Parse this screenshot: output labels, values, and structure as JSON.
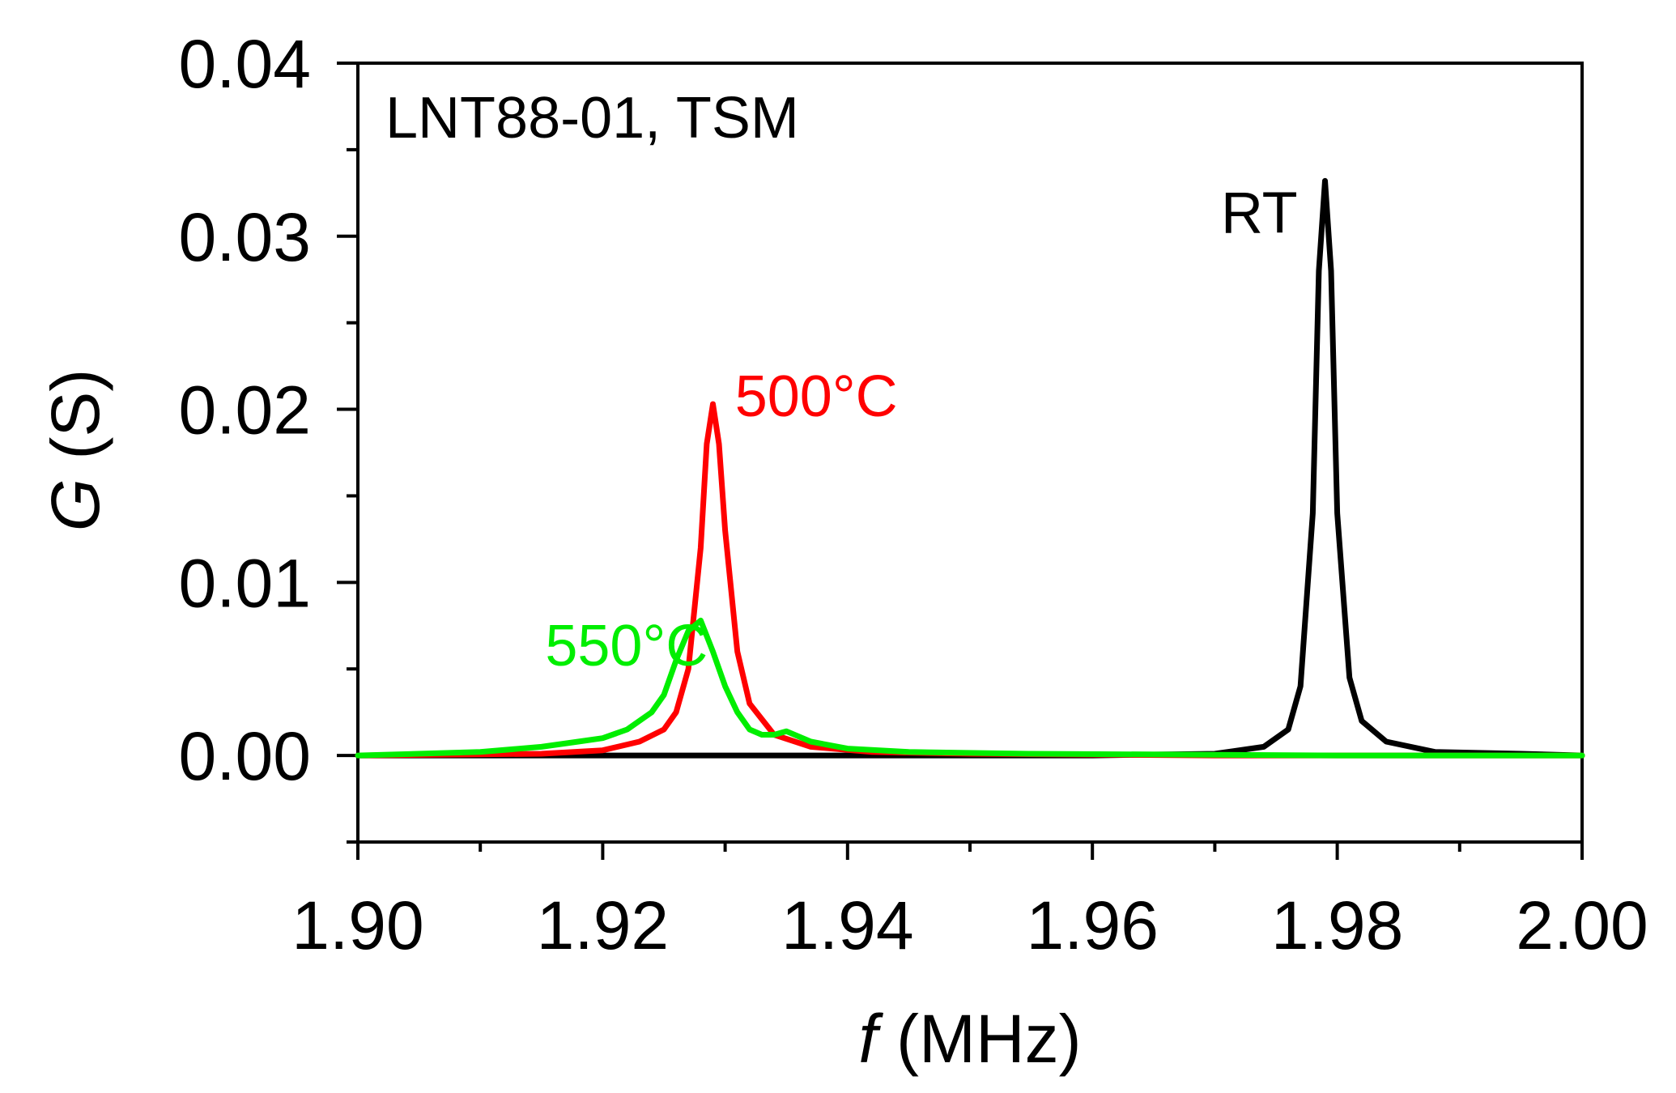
{
  "chart_data": {
    "type": "line",
    "title": "",
    "xlabel_var": "f",
    "xlabel_unit": " (MHz)",
    "ylabel_var": "G",
    "ylabel_unit": " (S)",
    "xlim": [
      1.9,
      2.0
    ],
    "ylim": [
      -0.005,
      0.04
    ],
    "x_ticks": [
      1.9,
      1.92,
      1.94,
      1.96,
      1.98,
      2.0
    ],
    "x_tick_labels": [
      "1.90",
      "1.92",
      "1.94",
      "1.96",
      "1.98",
      "2.00"
    ],
    "y_ticks": [
      0.0,
      0.01,
      0.02,
      0.03,
      0.04
    ],
    "y_tick_labels": [
      "0.00",
      "0.01",
      "0.02",
      "0.03",
      "0.04"
    ],
    "grid": false,
    "panel_label": "LNT88-01, TSM",
    "series": [
      {
        "name": "RT",
        "color": "#000000",
        "x": [
          1.9,
          1.96,
          1.97,
          1.974,
          1.976,
          1.977,
          1.978,
          1.9785,
          1.979,
          1.9795,
          1.98,
          1.981,
          1.982,
          1.984,
          1.988,
          1.995,
          2.0
        ],
        "y": [
          0.0,
          0.0,
          0.0001,
          0.0005,
          0.0015,
          0.004,
          0.014,
          0.028,
          0.0332,
          0.028,
          0.014,
          0.0045,
          0.002,
          0.0008,
          0.0002,
          0.0001,
          0.0
        ]
      },
      {
        "name": "500°C",
        "color": "#ff0000",
        "x": [
          1.9,
          1.915,
          1.92,
          1.923,
          1.925,
          1.926,
          1.927,
          1.928,
          1.9285,
          1.929,
          1.9295,
          1.93,
          1.931,
          1.932,
          1.934,
          1.937,
          1.942,
          1.95,
          1.97,
          2.0
        ],
        "y": [
          0.0,
          0.0001,
          0.0003,
          0.0008,
          0.0015,
          0.0025,
          0.005,
          0.012,
          0.018,
          0.0203,
          0.018,
          0.013,
          0.006,
          0.003,
          0.0012,
          0.0005,
          0.0002,
          0.0001,
          0.0,
          0.0
        ]
      },
      {
        "name": "550°C",
        "color": "#00ee00",
        "x": [
          1.9,
          1.91,
          1.915,
          1.918,
          1.92,
          1.922,
          1.924,
          1.925,
          1.926,
          1.927,
          1.928,
          1.929,
          1.93,
          1.931,
          1.932,
          1.933,
          1.934,
          1.935,
          1.937,
          1.94,
          1.945,
          1.955,
          1.98,
          2.0
        ],
        "y": [
          0.0,
          0.0002,
          0.0005,
          0.0008,
          0.001,
          0.0015,
          0.0025,
          0.0035,
          0.0055,
          0.0072,
          0.0078,
          0.006,
          0.004,
          0.0025,
          0.0015,
          0.0012,
          0.0012,
          0.0014,
          0.0008,
          0.0004,
          0.0002,
          0.0001,
          0.0,
          0.0
        ]
      }
    ],
    "annotations": [
      {
        "text": "RT",
        "series": "RT",
        "x": 1.9705,
        "y": 0.0302
      },
      {
        "text": "500°C",
        "series": "500°C",
        "x": 1.9308,
        "y": 0.0196
      },
      {
        "text": "550°C",
        "series": "550°C",
        "x": 1.9153,
        "y": 0.0052
      }
    ]
  }
}
